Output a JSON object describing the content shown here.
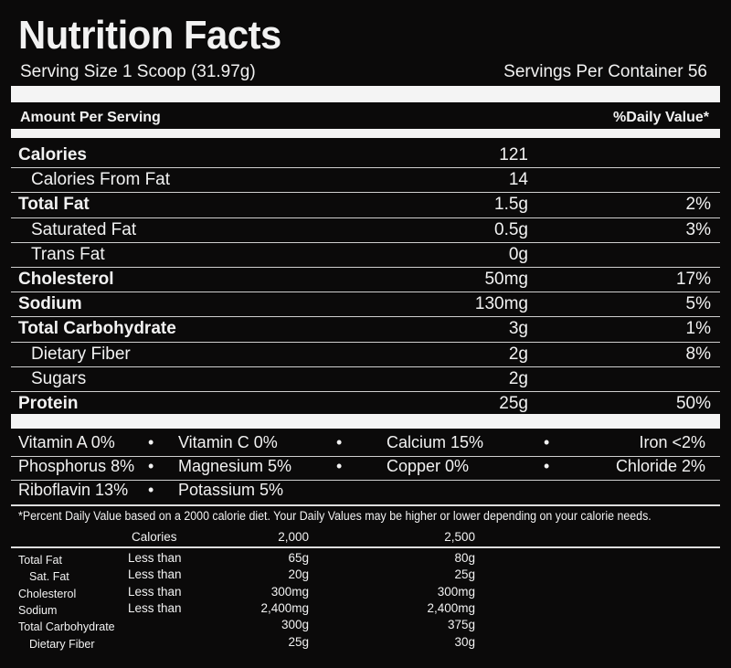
{
  "title": "Nutrition Facts",
  "serving_size": "Serving Size 1 Scoop (31.97g)",
  "servings_per_container": "Servings Per Container 56",
  "amount_per_serving": "Amount Per Serving",
  "daily_value_header": "%Daily Value*",
  "nutrients": [
    {
      "name": "Calories",
      "value": "121",
      "dv": "",
      "bold": true
    },
    {
      "name": "Calories From Fat",
      "value": "14",
      "dv": "",
      "bold": false
    },
    {
      "name": "Total Fat",
      "value": "1.5g",
      "dv": "2%",
      "bold": true
    },
    {
      "name": "Saturated Fat",
      "value": "0.5g",
      "dv": "3%",
      "bold": false
    },
    {
      "name": "Trans Fat",
      "value": "0g",
      "dv": "",
      "bold": false
    },
    {
      "name": "Cholesterol",
      "value": "50mg",
      "dv": "17%",
      "bold": true
    },
    {
      "name": "Sodium",
      "value": "130mg",
      "dv": "5%",
      "bold": true
    },
    {
      "name": "Total Carbohydrate",
      "value": "3g",
      "dv": "1%",
      "bold": true
    },
    {
      "name": "Dietary Fiber",
      "value": "2g",
      "dv": "8%",
      "bold": false
    },
    {
      "name": "Sugars",
      "value": "2g",
      "dv": "",
      "bold": false
    },
    {
      "name": "Protein",
      "value": "25g",
      "dv": "50%",
      "bold": true
    }
  ],
  "vitamins": [
    [
      "Vitamin A 0%",
      "Vitamin C 0%",
      "Calcium 15%",
      "Iron <2%"
    ],
    [
      "Phosphorus 8%",
      "Magnesium 5%",
      "Copper 0%",
      "Chloride 2%"
    ],
    [
      "Riboflavin 13%",
      "Potassium 5%"
    ]
  ],
  "footnote": "*Percent Daily Value based on a 2000 calorie diet. Your Daily Values may be higher or lower depending on your calorie needs.",
  "reference": {
    "header": [
      "Calories",
      "2,000",
      "2,500"
    ],
    "rows": [
      [
        "Total Fat",
        "Less than",
        "65g",
        "80g"
      ],
      [
        "Sat. Fat",
        "Less than",
        "20g",
        "25g"
      ],
      [
        "Cholesterol",
        "Less than",
        "300mg",
        "300mg"
      ],
      [
        "Sodium",
        "Less than",
        "2,400mg",
        "2,400mg"
      ],
      [
        "Total Carbohydrate",
        "",
        "300g",
        "375g"
      ],
      [
        "Dietary Fiber",
        "",
        "25g",
        "30g"
      ]
    ]
  }
}
